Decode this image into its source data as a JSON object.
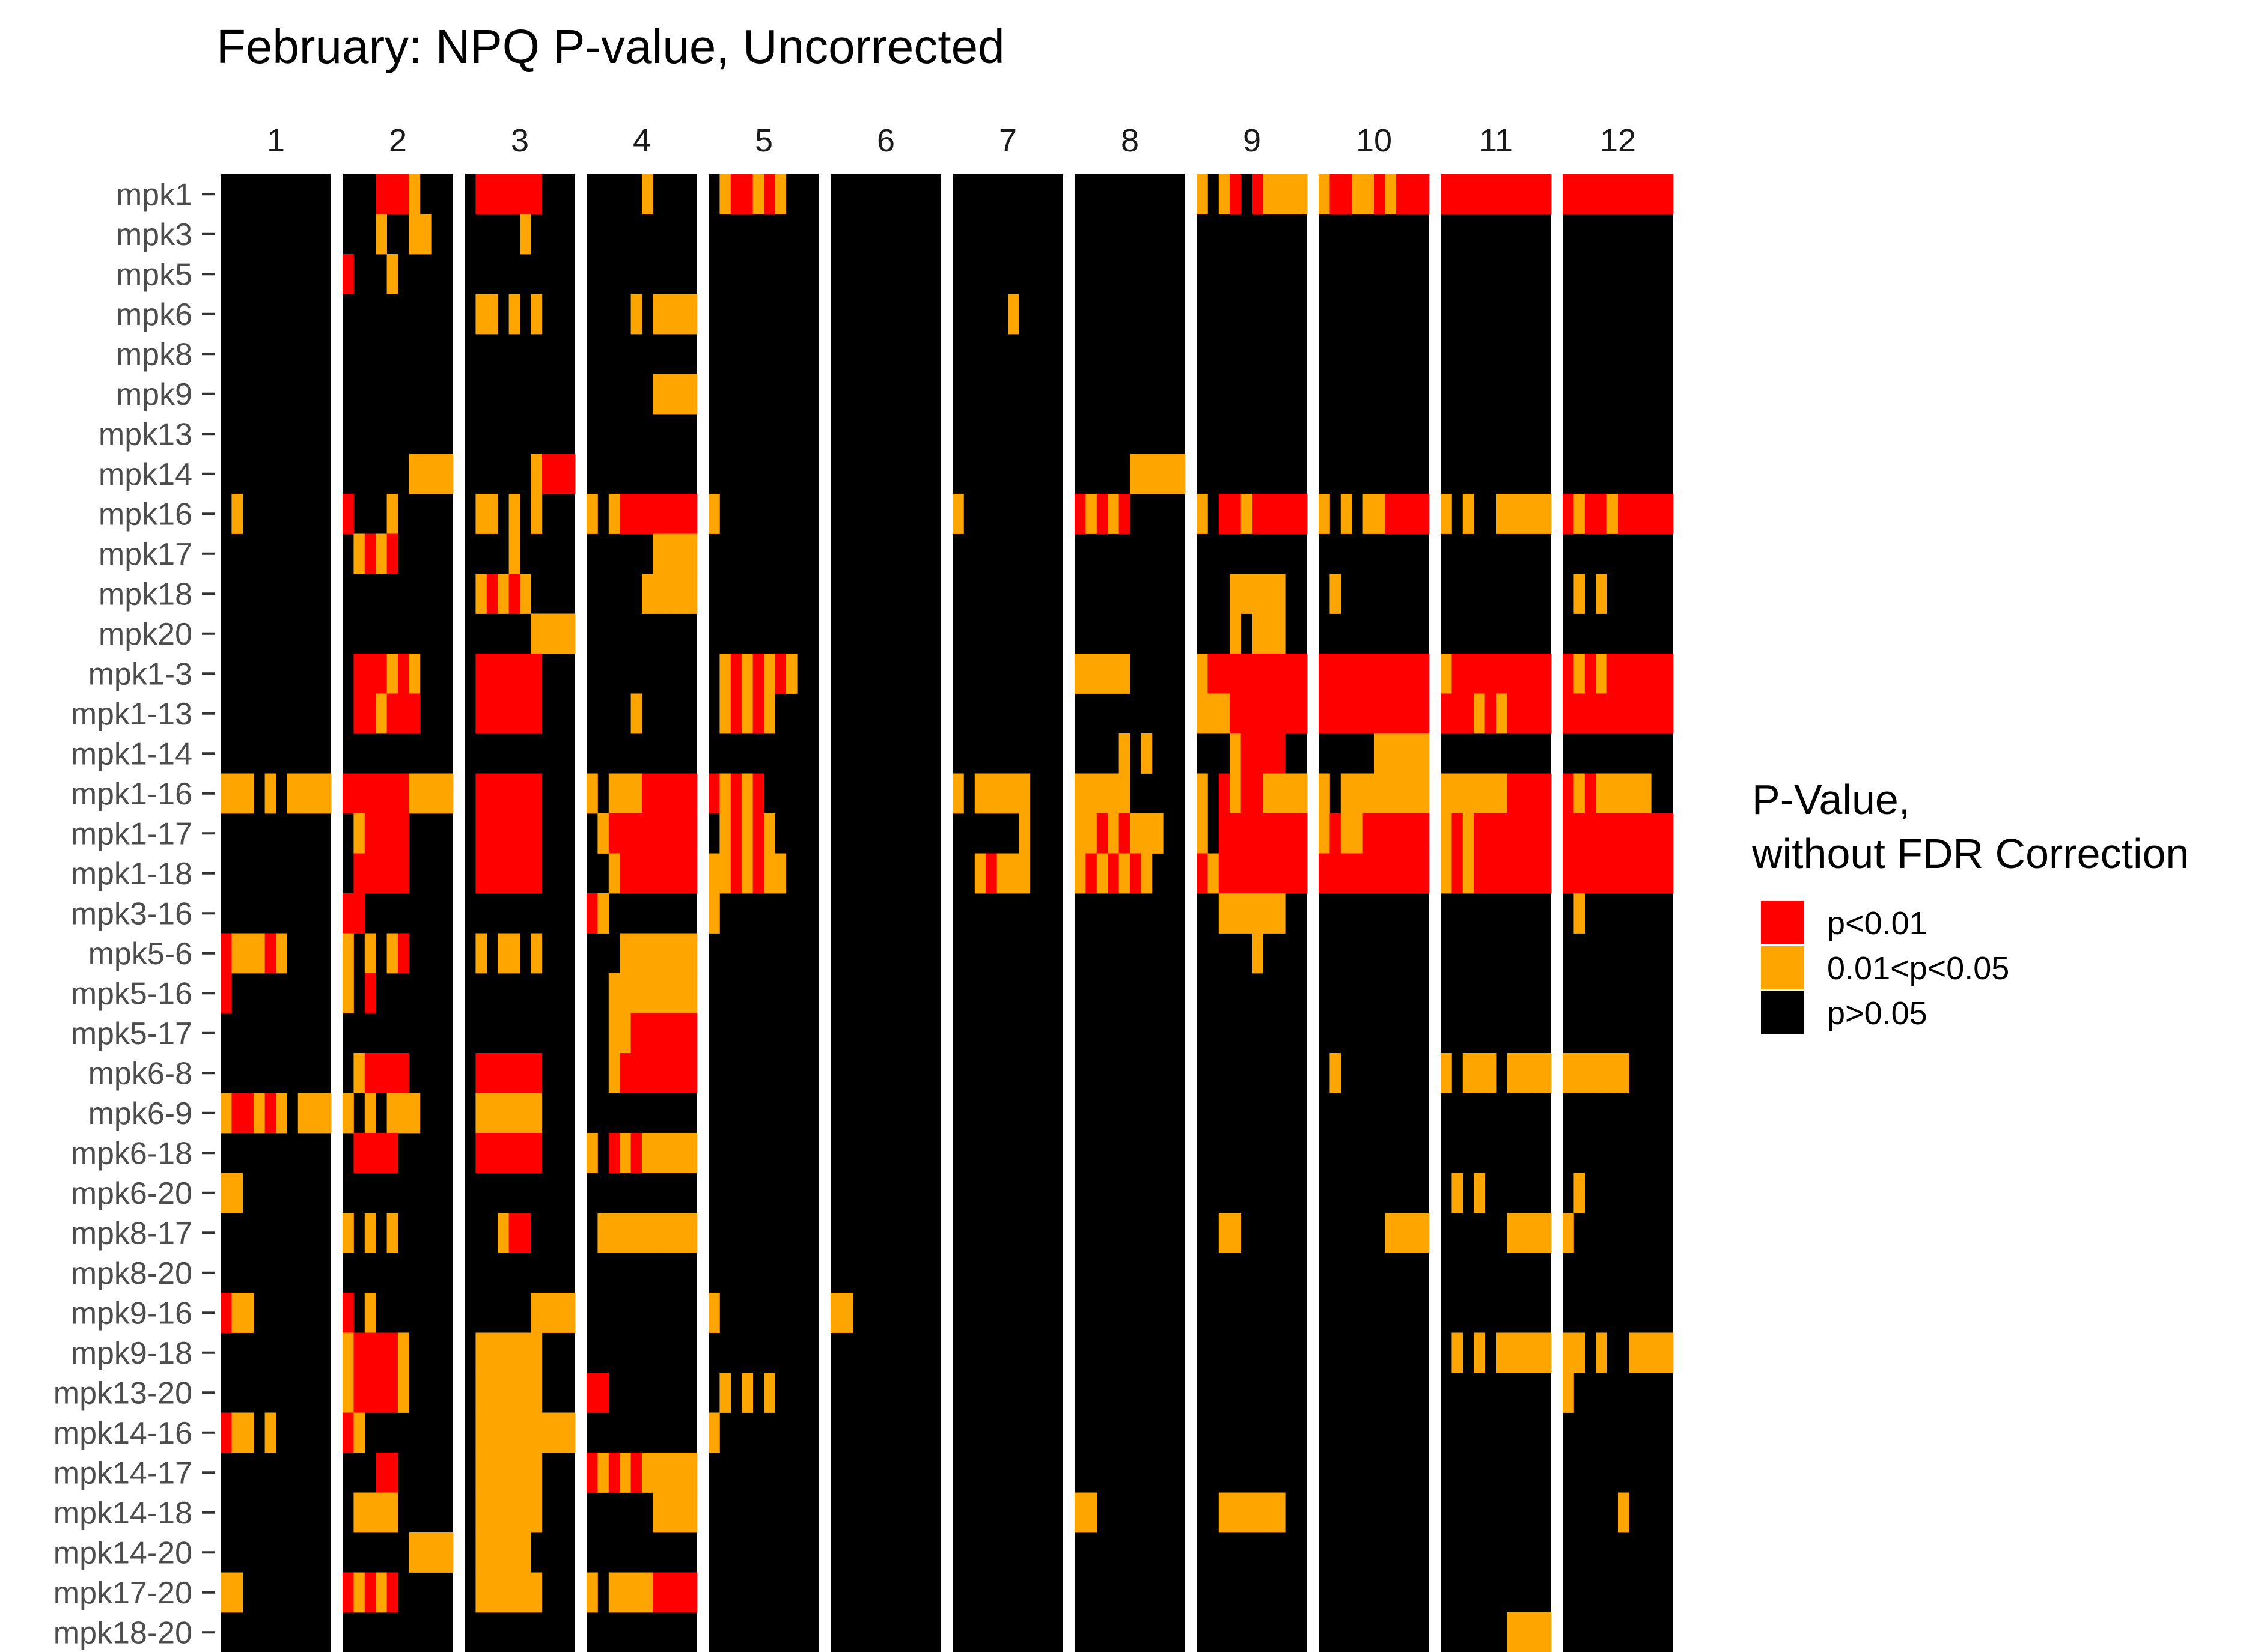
{
  "chart_data": {
    "type": "heatmap",
    "title": "February: NPQ P-value, Uncorrected",
    "facets": [
      "1",
      "2",
      "3",
      "4",
      "5",
      "6",
      "7",
      "8",
      "9",
      "10",
      "11",
      "12"
    ],
    "rows": [
      "mpk1",
      "mpk3",
      "mpk5",
      "mpk6",
      "mpk8",
      "mpk9",
      "mpk13",
      "mpk14",
      "mpk16",
      "mpk17",
      "mpk18",
      "mpk20",
      "mpk1-3",
      "mpk1-13",
      "mpk1-14",
      "mpk1-16",
      "mpk1-17",
      "mpk1-18",
      "mpk3-16",
      "mpk5-6",
      "mpk5-16",
      "mpk5-17",
      "mpk6-8",
      "mpk6-9",
      "mpk6-18",
      "mpk6-20",
      "mpk8-17",
      "mpk8-20",
      "mpk9-16",
      "mpk9-18",
      "mpk13-20",
      "mpk14-16",
      "mpk14-17",
      "mpk14-18",
      "mpk14-20",
      "mpk17-20",
      "mpk18-20"
    ],
    "legend": {
      "title_line1": "P-Value,",
      "title_line2": "without FDR Correction",
      "entries": [
        {
          "label": "p<0.01",
          "color": "#FF0000"
        },
        {
          "label": "0.01<p<0.05",
          "color": "#FFA500"
        },
        {
          "label": "p>0.05",
          "color": "#000000"
        }
      ],
      "position": "right"
    },
    "cells_note_levels": [
      "p>0.05",
      "0.01<p<0.05",
      "p<0.01"
    ],
    "cells": {
      "mpk1": {
        "1": "0000000000",
        "2": "0002221000",
        "3": "0222222000",
        "4": "0000010000",
        "5": "0122121000",
        "9": "1012021111",
        "10": "1221121222",
        "11": "2222222222",
        "12": "2222222222"
      },
      "mpk3": {
        "2": "0001001100",
        "3": "0000010000"
      },
      "mpk5": {
        "2": "2000100000"
      },
      "mpk6": {
        "3": "0110101000",
        "4": "0000101111",
        "7": "0000010000"
      },
      "mpk9": {
        "4": "0000001111"
      },
      "mpk14": {
        "2": "0000001111",
        "3": "0000001222",
        "6": "0000000000",
        "8": "0000011111"
      },
      "mpk16": {
        "1": "0100000000",
        "2": "2000100000",
        "3": "0110101000",
        "4": "1012222222",
        "5": "1000000000",
        "7": "1000000000",
        "8": "2121200000",
        "9": "1022122222",
        "10": "1010112222",
        "11": "1010011111",
        "12": "2122122222"
      },
      "mpk17": {
        "2": "0121200000",
        "3": "0000100000",
        "4": "0000001111"
      },
      "mpk18": {
        "3": "0121210000",
        "4": "0000011111",
        "9": "0001111100",
        "10": "0100000000",
        "12": "0101000000"
      },
      "mpk20": {
        "3": "0000001111",
        "9": "0001011100"
      },
      "mpk1-3": {
        "2": "0222121000",
        "3": "0222222000",
        "5": "0121212100",
        "8": "1111100000",
        "9": "1222222222",
        "10": "2222222222",
        "11": "1222222222",
        "12": "2121222222"
      },
      "mpk1-13": {
        "2": "0221222000",
        "3": "0222222000",
        "4": "0000100000",
        "5": "0121210000",
        "9": "1112222222",
        "10": "2222222222",
        "11": "2221212222",
        "12": "2222222222"
      },
      "mpk1-14": {
        "8": "0000101000",
        "9": "0001222200",
        "10": "0000011111"
      },
      "mpk1-16": {
        "1": "1110101111",
        "2": "2222221111",
        "3": "0222222000",
        "4": "1011122222",
        "5": "2121200000",
        "7": "1011111000",
        "8": "1111100000",
        "9": "1021221111",
        "10": "1011111111",
        "11": "1111112222",
        "12": "2121111100"
      },
      "mpk1-17": {
        "2": "0122220000",
        "3": "0222222000",
        "4": "0122222222",
        "5": "0121210000",
        "7": "0000001000",
        "8": "1121211100",
        "9": "1022222222",
        "10": "1211222222",
        "11": "1212222222",
        "12": "2222222222"
      },
      "mpk1-18": {
        "2": "0222220000",
        "3": "0222222000",
        "4": "0012222222",
        "5": "1121211000",
        "7": "0012111000",
        "8": "1212121000",
        "9": "2122222222",
        "10": "2222222222",
        "11": "1212222222",
        "12": "2222222222"
      },
      "mpk3-16": {
        "2": "2200000000",
        "4": "2100000000",
        "5": "1000000000",
        "9": "0011111100",
        "12": "0100000000"
      },
      "mpk5-6": {
        "1": "2111210000",
        "2": "1010120000",
        "3": "0101101000",
        "4": "0001111111",
        "9": "0000010000"
      },
      "mpk5-16": {
        "1": "2000000000",
        "2": "1020000000",
        "4": "0011111111"
      },
      "mpk5-17": {
        "1": "0000000000",
        "4": "0011222222"
      },
      "mpk6-8": {
        "2": "0122220000",
        "3": "0222222000",
        "4": "0012222222",
        "10": "0100000000",
        "11": "1011101111",
        "12": "1111110000"
      },
      "mpk6-9": {
        "1": "1221210111",
        "2": "1010111000",
        "3": "0111111000"
      },
      "mpk6-18": {
        "2": "0222200000",
        "3": "0222222000",
        "4": "1021211111",
        "6": "0000000000"
      },
      "mpk6-20": {
        "1": "1100000000",
        "11": "0101000000",
        "12": "0100000000"
      },
      "mpk8-17": {
        "2": "1010100000",
        "3": "0001220000",
        "4": "0111111111",
        "9": "0011000000",
        "10": "0000001111",
        "11": "0000001111",
        "12": "1000000000"
      },
      "mpk9-16": {
        "1": "2110000000",
        "2": "2010000000",
        "3": "0000001111",
        "5": "1000000000",
        "6": "1100000000"
      },
      "mpk9-18": {
        "2": "1222210000",
        "3": "0111111000",
        "11": "0101011111",
        "12": "1101001111"
      },
      "mpk13-20": {
        "2": "1222210000",
        "3": "0111111000",
        "4": "2200000000",
        "5": "0101010000",
        "12": "1000000000"
      },
      "mpk14-16": {
        "1": "2110100000",
        "2": "2100000000",
        "3": "0111111111",
        "5": "1000000000"
      },
      "mpk14-17": {
        "2": "0002200000",
        "3": "0111111000",
        "4": "2121211111"
      },
      "mpk14-18": {
        "2": "0111100000",
        "3": "0111111000",
        "4": "0000001111",
        "8": "1100000000",
        "9": "0011111100",
        "12": "0000010000"
      },
      "mpk14-20": {
        "2": "0000001111",
        "3": "0111110000"
      },
      "mpk17-20": {
        "1": "1100000000",
        "2": "2121200000",
        "3": "0111111000",
        "4": "1011112222"
      },
      "mpk18-20": {
        "11": "0000001111"
      }
    }
  }
}
